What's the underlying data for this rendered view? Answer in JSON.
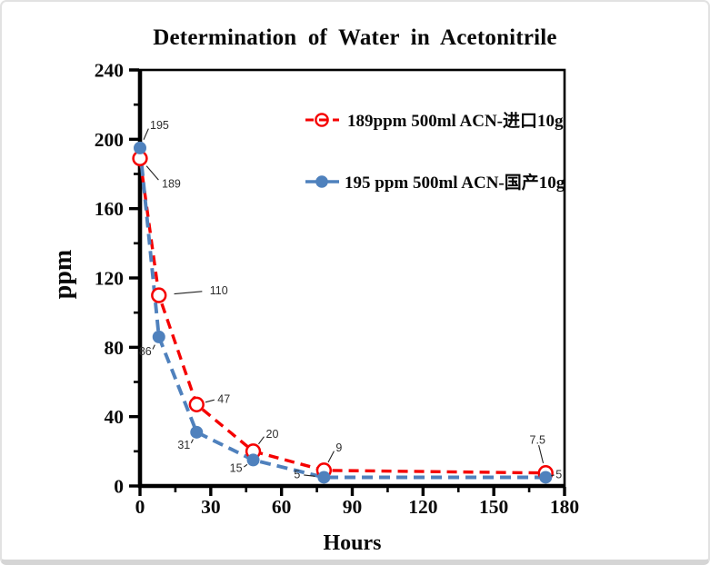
{
  "chart_data": {
    "type": "line",
    "title": "Determination of Water in Acetonitrile",
    "xlabel": "Hours",
    "ylabel": "ppm",
    "xlim": [
      0,
      180
    ],
    "ylim": [
      0,
      240
    ],
    "x_major_ticks": [
      0,
      30,
      60,
      90,
      120,
      150,
      180
    ],
    "x_minor_step": 15,
    "y_major_ticks": [
      0,
      40,
      80,
      120,
      160,
      200,
      240
    ],
    "y_minor_step": 20,
    "grid": false,
    "legend_position": "inside-top-right",
    "frame": true,
    "series": [
      {
        "name": "189ppm  500ml ACN-进口10g",
        "color": "#f50000",
        "line_style": "dashed",
        "marker": "open-circle",
        "x": [
          0,
          8,
          24,
          48,
          78,
          172
        ],
        "values": [
          189,
          110,
          47,
          20,
          9,
          7.5
        ],
        "point_labels": [
          "189",
          "110",
          "47",
          "20",
          "9",
          "7.5"
        ],
        "label_offsets": [
          [
            24,
            28,
            "start"
          ],
          [
            56,
            -5,
            "start"
          ],
          [
            23,
            -6,
            "start"
          ],
          [
            14,
            -19,
            "start"
          ],
          [
            13,
            -25,
            "start"
          ],
          [
            -9,
            -36,
            "middle"
          ]
        ]
      },
      {
        "name": "195 ppm 500ml ACN-国产10g",
        "color": "#4f81bd",
        "line_style": "dashed",
        "marker": "filled-circle",
        "x": [
          0,
          8,
          24,
          48,
          78,
          172
        ],
        "values": [
          195,
          86,
          31,
          15,
          5,
          5
        ],
        "point_labels": [
          "195",
          "86",
          "31",
          "15",
          "5",
          "5"
        ],
        "label_offsets": [
          [
            11,
            -25,
            "start"
          ],
          [
            -8,
            16,
            "end"
          ],
          [
            -7,
            14,
            "end"
          ],
          [
            -12,
            9,
            "end"
          ],
          [
            -26,
            -3,
            "end"
          ],
          [
            11,
            -3,
            "start"
          ]
        ]
      }
    ]
  }
}
